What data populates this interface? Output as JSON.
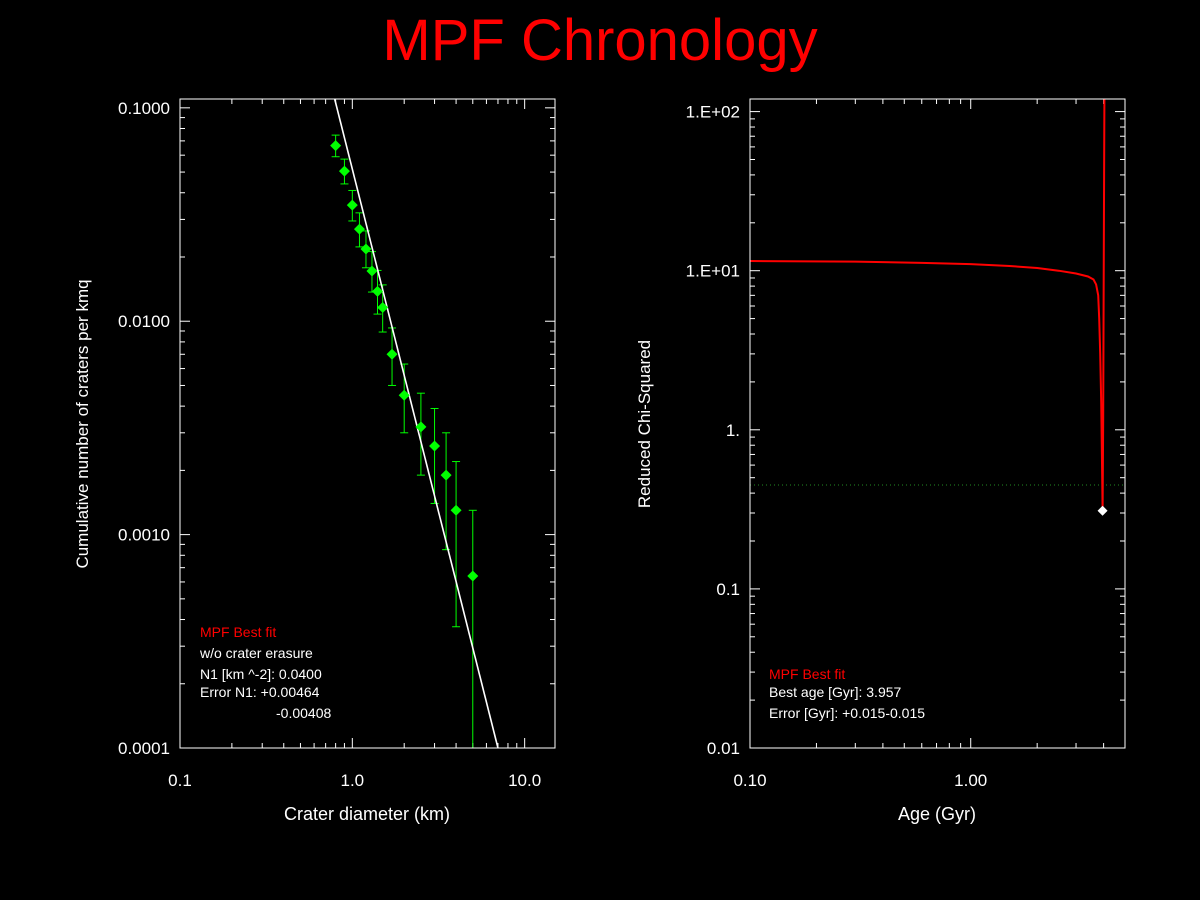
{
  "title": "MPF Chronology",
  "colors": {
    "background": "#000000",
    "title": "#ff0000",
    "axes": "#ffffff",
    "points": "#00ff00",
    "fit_line": "#ffffff",
    "chi_curve": "#ff0000",
    "threshold": "#228b22",
    "best_marker": "#ffffff",
    "legend_heading": "#ff0000",
    "legend_text": "#ffffff"
  },
  "chart_data": [
    {
      "type": "scatter",
      "xlabel": "Crater diameter (km)",
      "ylabel": "Cumulative number of craters per kmq",
      "x_scale": "log",
      "y_scale": "log",
      "xlim": [
        0.1,
        15
      ],
      "ylim": [
        0.0001,
        0.11
      ],
      "x_ticks": [
        {
          "value": 0.1,
          "label": "0.1"
        },
        {
          "value": 1.0,
          "label": "1.0"
        },
        {
          "value": 10.0,
          "label": "10.0"
        }
      ],
      "y_ticks": [
        {
          "value": 0.1,
          "label": "0.1000"
        },
        {
          "value": 0.01,
          "label": "0.0100"
        },
        {
          "value": 0.001,
          "label": "0.0010"
        },
        {
          "value": 0.0001,
          "label": "0.0001"
        }
      ],
      "points": [
        {
          "x": 0.8,
          "y": 0.0665,
          "y_low": 0.059,
          "y_high": 0.0745
        },
        {
          "x": 0.9,
          "y": 0.0505,
          "y_low": 0.044,
          "y_high": 0.0575
        },
        {
          "x": 1.0,
          "y": 0.035,
          "y_low": 0.0295,
          "y_high": 0.041
        },
        {
          "x": 1.1,
          "y": 0.027,
          "y_low": 0.0223,
          "y_high": 0.0322
        },
        {
          "x": 1.2,
          "y": 0.0218,
          "y_low": 0.0178,
          "y_high": 0.0265
        },
        {
          "x": 1.3,
          "y": 0.0172,
          "y_low": 0.0137,
          "y_high": 0.0212
        },
        {
          "x": 1.4,
          "y": 0.0138,
          "y_low": 0.0108,
          "y_high": 0.0173
        },
        {
          "x": 1.5,
          "y": 0.0116,
          "y_low": 0.0089,
          "y_high": 0.0148
        },
        {
          "x": 1.7,
          "y": 0.007,
          "y_low": 0.005,
          "y_high": 0.0093
        },
        {
          "x": 2.0,
          "y": 0.0045,
          "y_low": 0.003,
          "y_high": 0.0063
        },
        {
          "x": 2.5,
          "y": 0.0032,
          "y_low": 0.0019,
          "y_high": 0.0046
        },
        {
          "x": 3.0,
          "y": 0.0026,
          "y_low": 0.0014,
          "y_high": 0.0039
        },
        {
          "x": 3.5,
          "y": 0.0019,
          "y_low": 0.00085,
          "y_high": 0.003
        },
        {
          "x": 4.0,
          "y": 0.0013,
          "y_low": 0.00037,
          "y_high": 0.0022
        },
        {
          "x": 5.0,
          "y": 0.00064,
          "y_low": 0.0001,
          "y_high": 0.0013
        }
      ],
      "fit_line": [
        {
          "x": 0.79,
          "y": 0.11
        },
        {
          "x": 7.0,
          "y": 0.0001
        }
      ],
      "legend": {
        "heading": "MPF Best fit",
        "lines": [
          "w/o crater erasure",
          "N1 [km ^-2]: 0.0400",
          "Error N1: +0.00464",
          "-0.00408"
        ]
      }
    },
    {
      "type": "line",
      "xlabel": "Age (Gyr)",
      "ylabel": "Reduced Chi-Squared",
      "x_scale": "log",
      "y_scale": "log",
      "xlim": [
        0.1,
        5.0
      ],
      "ylim": [
        0.01,
        120
      ],
      "x_ticks": [
        {
          "value": 0.1,
          "label": "0.10"
        },
        {
          "value": 1.0,
          "label": "1.00"
        }
      ],
      "y_ticks": [
        {
          "value": 100,
          "label": "1.E+02"
        },
        {
          "value": 10,
          "label": "1.E+01"
        },
        {
          "value": 1,
          "label": "1."
        },
        {
          "value": 0.1,
          "label": "0.1"
        },
        {
          "value": 0.01,
          "label": "0.01"
        }
      ],
      "series": [
        {
          "points": [
            [
              0.1,
              11.5
            ],
            [
              0.3,
              11.4
            ],
            [
              0.6,
              11.2
            ],
            [
              1.0,
              11.0
            ],
            [
              1.5,
              10.7
            ],
            [
              2.0,
              10.4
            ],
            [
              2.5,
              10.0
            ],
            [
              3.0,
              9.6
            ],
            [
              3.4,
              9.2
            ],
            [
              3.6,
              8.8
            ],
            [
              3.7,
              8.2
            ],
            [
              3.78,
              7.0
            ],
            [
              3.82,
              5.0
            ],
            [
              3.86,
              3.0
            ],
            [
              3.9,
              1.5
            ],
            [
              3.93,
              0.7
            ],
            [
              3.957,
              0.31
            ],
            [
              3.985,
              1.2
            ],
            [
              4.0,
              6.0
            ],
            [
              4.02,
              40.0
            ],
            [
              4.035,
              120.0
            ]
          ]
        }
      ],
      "reference_line_y": 0.45,
      "best_point": {
        "x": 3.957,
        "y": 0.31
      },
      "legend": {
        "heading": "MPF Best fit",
        "lines": [
          "Best age [Gyr]: 3.957",
          "Error [Gyr]: +0.015-0.015"
        ]
      }
    }
  ]
}
